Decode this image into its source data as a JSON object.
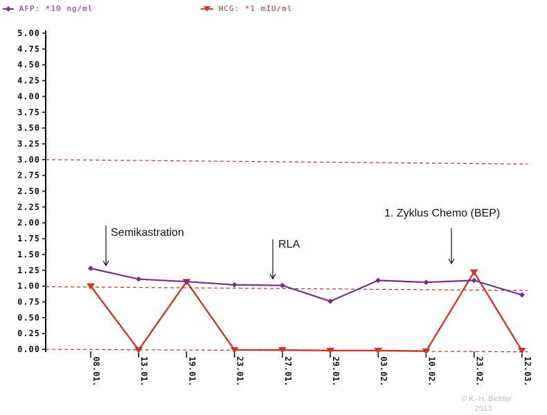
{
  "legend": {
    "afp": "AFP: *10 ng/ml",
    "hcg": "HCG: *1 mIU/ml"
  },
  "annotations": {
    "semikastration": "Semikastration",
    "rla": "RLA",
    "chemo": "1. Zyklus Chemo (BEP)"
  },
  "copyright": {
    "line1": "© K.-H. Bichler",
    "line2": "2013"
  },
  "colors": {
    "afp": "#7b2d8e",
    "hcg": "#c8392c",
    "reference": "#b03020"
  },
  "chart_data": {
    "type": "line",
    "categories": [
      "08.01.",
      "13.01.",
      "19.01.",
      "23.01.",
      "27.01.",
      "29.01.",
      "03.02.",
      "10.02.",
      "23.02.",
      "12.03."
    ],
    "series": [
      {
        "name": "AFP: *10 ng/ml",
        "values": [
          1.28,
          1.11,
          1.07,
          1.02,
          1.01,
          0.76,
          1.09,
          1.06,
          1.09,
          0.86
        ]
      },
      {
        "name": "HCG: *1 mIU/ml",
        "values": [
          1.0,
          -0.01,
          1.07,
          -0.01,
          -0.01,
          -0.02,
          -0.02,
          -0.03,
          1.22,
          -0.02
        ]
      }
    ],
    "y_ticks": [
      "0.00",
      "0.25",
      "0.50",
      "0.75",
      "1.00",
      "1.25",
      "1.50",
      "1.75",
      "2.00",
      "2.25",
      "2.50",
      "2.75",
      "3.00",
      "3.25",
      "3.50",
      "3.75",
      "4.00",
      "4.25",
      "4.50",
      "4.75",
      "5.00"
    ],
    "ylim": [
      0,
      5
    ],
    "reference_lines": [
      {
        "start": 3.0,
        "end": 2.93
      },
      {
        "start": 0.99,
        "end": 0.93
      },
      {
        "start": 0.0,
        "end": -0.04
      }
    ],
    "grid": false
  }
}
